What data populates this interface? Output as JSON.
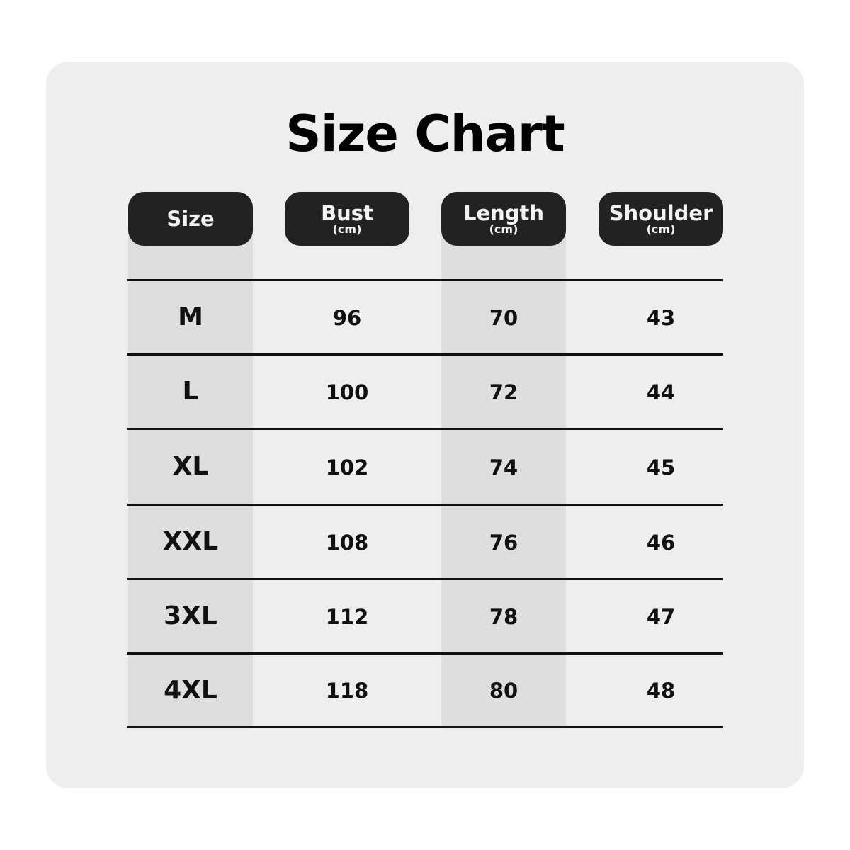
{
  "title": "Size Chart",
  "colors": {
    "background": "#eeeeee",
    "header_pill": "#222222",
    "shaded_column": "#dedede"
  },
  "headers": [
    {
      "label": "Size",
      "unit": ""
    },
    {
      "label": "Bust",
      "unit": "(cm)"
    },
    {
      "label": "Length",
      "unit": "(cm)"
    },
    {
      "label": "Shoulder",
      "unit": "(cm)"
    }
  ],
  "rows": [
    [
      "M",
      "96",
      "70",
      "43"
    ],
    [
      "L",
      "100",
      "72",
      "44"
    ],
    [
      "XL",
      "102",
      "74",
      "45"
    ],
    [
      "XXL",
      "108",
      "76",
      "46"
    ],
    [
      "3XL",
      "112",
      "78",
      "47"
    ],
    [
      "4XL",
      "118",
      "80",
      "48"
    ]
  ]
}
